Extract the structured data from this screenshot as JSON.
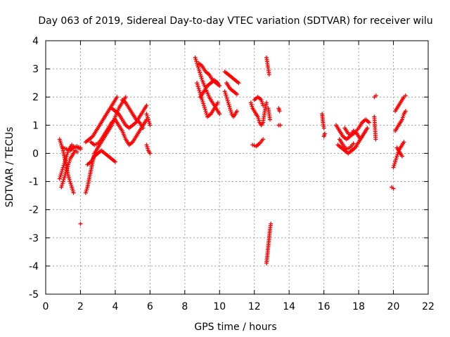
{
  "chart_data": {
    "type": "scatter",
    "title": "Day 063 of 2019, Sidereal Day-to-day VTEC variation (SDTVAR) for receiver wilu",
    "xlabel": "GPS time / hours",
    "ylabel": "SDTVAR / TECUs",
    "xlim": [
      0,
      22
    ],
    "ylim": [
      -5,
      4
    ],
    "xticks": [
      "0",
      "2",
      "4",
      "6",
      "8",
      "10",
      "12",
      "14",
      "16",
      "18",
      "20",
      "22"
    ],
    "yticks": [
      "-5",
      "-4",
      "-3",
      "-2",
      "-1",
      "0",
      "1",
      "2",
      "3",
      "4"
    ],
    "grid": true,
    "marker": "+",
    "color": "#ff0000",
    "segments": [
      [
        [
          0.8,
          0.5
        ],
        [
          0.9,
          0.3
        ],
        [
          1.0,
          0.1
        ],
        [
          1.1,
          -0.2
        ],
        [
          1.2,
          -0.5
        ],
        [
          1.3,
          -0.8
        ],
        [
          1.4,
          -1.0
        ],
        [
          1.5,
          -1.2
        ],
        [
          1.6,
          -1.4
        ]
      ],
      [
        [
          0.8,
          -0.9
        ],
        [
          0.9,
          -0.7
        ],
        [
          1.0,
          -0.5
        ],
        [
          1.1,
          -0.3
        ],
        [
          1.2,
          -0.1
        ],
        [
          1.3,
          0.1
        ],
        [
          1.4,
          0.2
        ],
        [
          1.5,
          0.3
        ],
        [
          1.6,
          0.25
        ],
        [
          1.8,
          0.2
        ],
        [
          2.0,
          0.15
        ]
      ],
      [
        [
          0.9,
          -1.2
        ],
        [
          1.0,
          -1.0
        ],
        [
          1.1,
          -0.8
        ],
        [
          1.2,
          -0.6
        ],
        [
          1.3,
          -0.4
        ],
        [
          1.4,
          -0.2
        ],
        [
          1.5,
          -0.1
        ],
        [
          1.6,
          0.0
        ],
        [
          1.7,
          0.1
        ],
        [
          1.8,
          0.05
        ]
      ],
      [
        [
          1.0,
          0.2
        ],
        [
          1.2,
          0.15
        ],
        [
          1.4,
          0.1
        ],
        [
          1.6,
          0.2
        ],
        [
          1.8,
          0.25
        ],
        [
          2.0,
          0.2
        ]
      ],
      [
        [
          2.3,
          -1.4
        ],
        [
          2.4,
          -1.2
        ],
        [
          2.5,
          -0.9
        ],
        [
          2.6,
          -0.6
        ],
        [
          2.7,
          -0.3
        ],
        [
          2.8,
          0.0
        ],
        [
          3.0,
          0.2
        ],
        [
          3.2,
          0.4
        ],
        [
          3.4,
          0.6
        ],
        [
          3.6,
          0.8
        ],
        [
          3.8,
          1.0
        ],
        [
          4.0,
          1.3
        ],
        [
          4.2,
          1.6
        ],
        [
          4.4,
          1.8
        ],
        [
          4.6,
          2.0
        ]
      ],
      [
        [
          2.3,
          0.4
        ],
        [
          2.5,
          0.5
        ],
        [
          2.7,
          0.6
        ],
        [
          2.9,
          0.8
        ],
        [
          3.1,
          1.0
        ],
        [
          3.3,
          1.2
        ],
        [
          3.5,
          1.4
        ],
        [
          3.7,
          1.6
        ],
        [
          3.9,
          1.8
        ],
        [
          4.1,
          2.0
        ]
      ],
      [
        [
          2.4,
          -0.4
        ],
        [
          2.6,
          -0.3
        ],
        [
          2.8,
          -0.1
        ],
        [
          3.0,
          0.0
        ],
        [
          3.2,
          0.1
        ],
        [
          3.4,
          0.0
        ],
        [
          3.6,
          -0.1
        ],
        [
          3.8,
          -0.2
        ],
        [
          4.0,
          -0.3
        ]
      ],
      [
        [
          2.6,
          0.4
        ],
        [
          2.8,
          0.3
        ],
        [
          3.0,
          0.35
        ],
        [
          3.2,
          0.5
        ],
        [
          3.4,
          0.7
        ],
        [
          3.6,
          0.9
        ],
        [
          3.8,
          1.1
        ],
        [
          4.0,
          1.2
        ],
        [
          4.2,
          1.0
        ],
        [
          4.4,
          0.8
        ],
        [
          4.6,
          0.5
        ],
        [
          4.8,
          0.3
        ],
        [
          5.0,
          0.4
        ],
        [
          5.2,
          0.6
        ],
        [
          5.4,
          0.8
        ],
        [
          5.6,
          1.0
        ],
        [
          5.8,
          1.2
        ]
      ],
      [
        [
          3.8,
          1.6
        ],
        [
          4.0,
          1.5
        ],
        [
          4.2,
          1.4
        ],
        [
          4.4,
          1.2
        ],
        [
          4.6,
          1.0
        ],
        [
          4.8,
          0.9
        ],
        [
          5.0,
          1.0
        ],
        [
          5.2,
          1.1
        ],
        [
          5.4,
          1.3
        ],
        [
          5.6,
          1.5
        ],
        [
          5.8,
          1.7
        ]
      ],
      [
        [
          4.4,
          1.9
        ],
        [
          4.6,
          1.8
        ],
        [
          4.8,
          1.6
        ],
        [
          5.0,
          1.4
        ],
        [
          5.2,
          1.2
        ],
        [
          5.4,
          1.1
        ],
        [
          5.6,
          0.9
        ]
      ],
      [
        [
          5.8,
          1.4
        ],
        [
          5.9,
          1.2
        ],
        [
          6.0,
          1.0
        ]
      ],
      [
        [
          5.8,
          0.3
        ],
        [
          5.9,
          0.1
        ],
        [
          6.0,
          0.0
        ]
      ],
      [
        [
          2.0,
          -2.5
        ]
      ],
      [
        [
          8.6,
          3.4
        ],
        [
          8.7,
          3.2
        ],
        [
          8.8,
          3.0
        ],
        [
          8.9,
          2.8
        ],
        [
          9.0,
          2.6
        ],
        [
          9.2,
          2.3
        ],
        [
          9.4,
          2.0
        ],
        [
          9.6,
          1.8
        ],
        [
          9.8,
          1.6
        ],
        [
          10.0,
          1.4
        ]
      ],
      [
        [
          8.7,
          2.5
        ],
        [
          8.8,
          2.3
        ],
        [
          8.9,
          2.1
        ],
        [
          9.0,
          1.9
        ],
        [
          9.1,
          1.7
        ],
        [
          9.2,
          1.5
        ],
        [
          9.3,
          1.3
        ],
        [
          9.5,
          1.4
        ],
        [
          9.7,
          1.6
        ],
        [
          9.9,
          1.8
        ]
      ],
      [
        [
          8.8,
          3.2
        ],
        [
          9.0,
          3.1
        ],
        [
          9.2,
          2.9
        ],
        [
          9.4,
          2.8
        ],
        [
          9.6,
          2.6
        ],
        [
          9.8,
          2.5
        ],
        [
          10.0,
          2.4
        ]
      ],
      [
        [
          8.9,
          2.0
        ],
        [
          9.1,
          2.2
        ],
        [
          9.3,
          2.4
        ],
        [
          9.5,
          2.5
        ],
        [
          9.7,
          2.6
        ],
        [
          9.9,
          2.5
        ]
      ],
      [
        [
          10.3,
          2.9
        ],
        [
          10.5,
          2.8
        ],
        [
          10.7,
          2.7
        ],
        [
          10.9,
          2.6
        ],
        [
          11.1,
          2.5
        ]
      ],
      [
        [
          10.3,
          2.2
        ],
        [
          10.4,
          2.0
        ],
        [
          10.5,
          1.8
        ],
        [
          10.6,
          1.6
        ],
        [
          10.7,
          1.4
        ],
        [
          10.8,
          1.3
        ],
        [
          11.0,
          1.5
        ]
      ],
      [
        [
          10.4,
          2.5
        ],
        [
          10.6,
          2.3
        ],
        [
          10.8,
          2.2
        ],
        [
          11.0,
          2.1
        ]
      ],
      [
        [
          11.8,
          1.8
        ],
        [
          11.9,
          1.6
        ],
        [
          12.0,
          1.5
        ],
        [
          12.1,
          1.4
        ],
        [
          12.2,
          1.3
        ],
        [
          12.3,
          1.1
        ],
        [
          12.4,
          1.0
        ],
        [
          12.5,
          1.1
        ],
        [
          12.6,
          1.5
        ],
        [
          12.7,
          1.8
        ]
      ],
      [
        [
          11.9,
          0.3
        ],
        [
          12.1,
          0.25
        ],
        [
          12.3,
          0.35
        ],
        [
          12.5,
          0.5
        ]
      ],
      [
        [
          12.0,
          1.9
        ],
        [
          12.2,
          2.0
        ],
        [
          12.4,
          1.9
        ],
        [
          12.5,
          1.7
        ]
      ],
      [
        [
          12.7,
          3.4
        ],
        [
          12.75,
          3.2
        ],
        [
          12.8,
          3.0
        ],
        [
          12.85,
          2.8
        ]
      ],
      [
        [
          12.8,
          1.6
        ],
        [
          12.85,
          1.4
        ],
        [
          12.9,
          1.2
        ]
      ],
      [
        [
          12.7,
          -3.9
        ],
        [
          12.75,
          -3.6
        ],
        [
          12.8,
          -3.3
        ],
        [
          12.85,
          -3.0
        ],
        [
          12.9,
          -2.7
        ],
        [
          12.95,
          -2.5
        ]
      ],
      [
        [
          13.4,
          1.6
        ],
        [
          13.45,
          1.5
        ]
      ],
      [
        [
          13.4,
          1.0
        ],
        [
          13.5,
          1.0
        ]
      ],
      [
        [
          15.9,
          1.4
        ],
        [
          15.95,
          1.1
        ],
        [
          16.0,
          0.9
        ]
      ],
      [
        [
          16.0,
          0.6
        ],
        [
          16.05,
          0.7
        ]
      ],
      [
        [
          16.7,
          1.0
        ],
        [
          16.9,
          0.8
        ],
        [
          17.1,
          0.6
        ],
        [
          17.3,
          0.5
        ],
        [
          17.5,
          0.6
        ],
        [
          17.7,
          0.8
        ],
        [
          17.9,
          0.7
        ],
        [
          18.1,
          0.5
        ],
        [
          18.3,
          0.7
        ],
        [
          18.5,
          0.9
        ]
      ],
      [
        [
          16.8,
          0.3
        ],
        [
          17.0,
          0.2
        ],
        [
          17.2,
          0.1
        ],
        [
          17.4,
          0.0
        ],
        [
          17.6,
          0.1
        ],
        [
          17.8,
          0.2
        ],
        [
          18.0,
          0.4
        ],
        [
          18.2,
          0.6
        ],
        [
          18.4,
          0.8
        ]
      ],
      [
        [
          16.9,
          0.5
        ],
        [
          17.1,
          0.3
        ],
        [
          17.3,
          0.15
        ],
        [
          17.5,
          0.2
        ],
        [
          17.7,
          0.35
        ]
      ],
      [
        [
          17.2,
          0.9
        ],
        [
          17.4,
          0.7
        ],
        [
          17.6,
          0.65
        ],
        [
          17.8,
          0.75
        ],
        [
          18.0,
          0.9
        ],
        [
          18.2,
          1.1
        ],
        [
          18.4,
          1.2
        ],
        [
          18.6,
          1.1
        ]
      ],
      [
        [
          18.9,
          1.3
        ],
        [
          18.92,
          1.1
        ],
        [
          18.94,
          0.9
        ],
        [
          18.96,
          0.7
        ],
        [
          18.98,
          0.5
        ]
      ],
      [
        [
          18.9,
          2.0
        ],
        [
          19.0,
          2.05
        ]
      ],
      [
        [
          19.9,
          -1.2
        ],
        [
          20.0,
          -1.25
        ]
      ],
      [
        [
          20.0,
          -0.5
        ],
        [
          20.1,
          -0.3
        ],
        [
          20.2,
          -0.1
        ],
        [
          20.3,
          0.1
        ],
        [
          20.4,
          0.2
        ],
        [
          20.5,
          0.3
        ],
        [
          20.6,
          0.4
        ]
      ],
      [
        [
          20.1,
          0.8
        ],
        [
          20.2,
          0.9
        ],
        [
          20.3,
          1.0
        ],
        [
          20.4,
          1.1
        ],
        [
          20.5,
          1.2
        ],
        [
          20.6,
          1.4
        ],
        [
          20.7,
          1.5
        ]
      ],
      [
        [
          20.1,
          1.5
        ],
        [
          20.2,
          1.6
        ],
        [
          20.3,
          1.7
        ],
        [
          20.4,
          1.8
        ],
        [
          20.5,
          1.9
        ],
        [
          20.6,
          2.0
        ],
        [
          20.7,
          2.05
        ]
      ],
      [
        [
          20.2,
          0.2
        ],
        [
          20.3,
          0.1
        ],
        [
          20.4,
          0.0
        ],
        [
          20.5,
          -0.1
        ]
      ]
    ]
  }
}
